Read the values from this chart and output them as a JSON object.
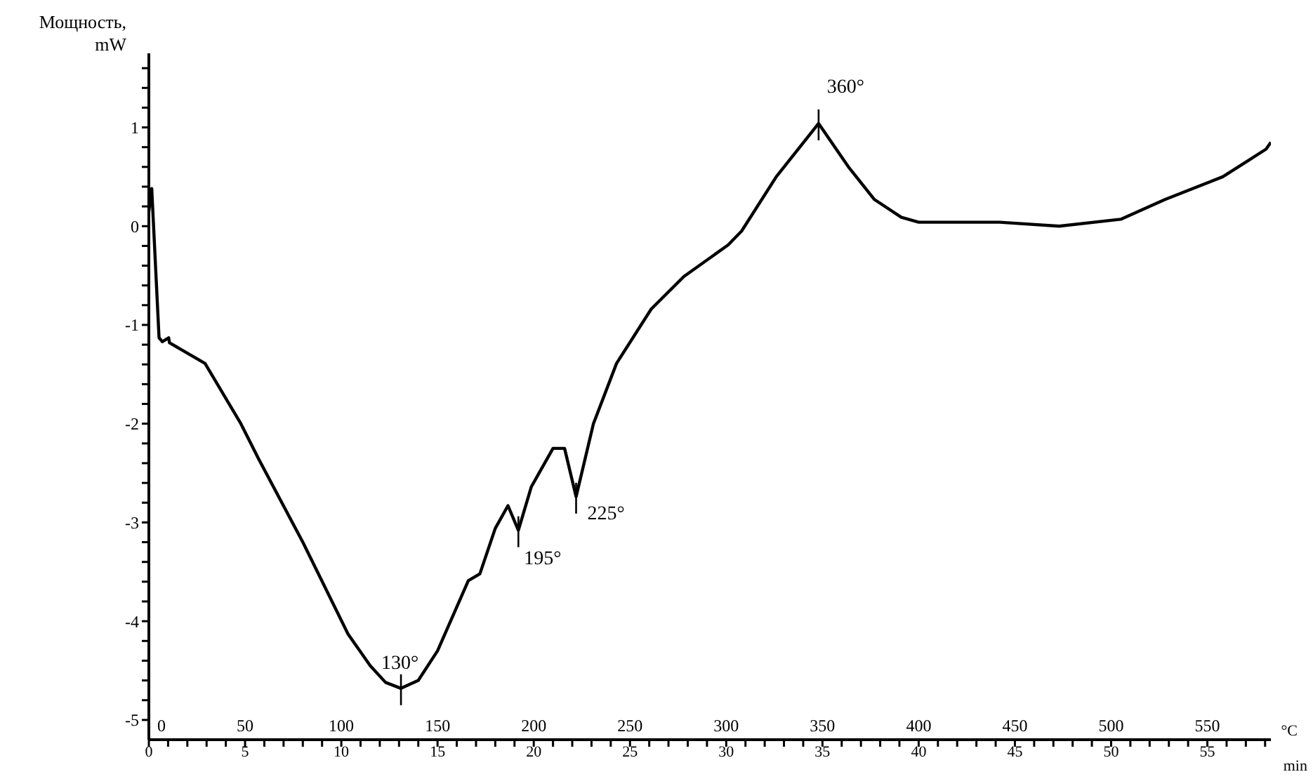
{
  "chart_data": {
    "type": "line",
    "ylabel": "Мощность, mW",
    "xlabel": "min",
    "x2label": "°C",
    "xlim": [
      0,
      58.3
    ],
    "ylim": [
      -5.2,
      1.75
    ],
    "x2lim": [
      0,
      583
    ],
    "xticks": [
      0,
      {
        "value": 1,
        "label": null
      },
      {
        "value": 2,
        "label": null
      },
      {
        "value": 3,
        "label": null
      },
      {
        "value": 4,
        "label": null
      },
      5,
      {
        "value": 6,
        "label": null
      },
      {
        "value": 7,
        "label": null
      },
      {
        "value": 8,
        "label": null
      },
      {
        "value": 9,
        "label": null
      },
      10,
      {
        "value": 11,
        "label": null
      },
      {
        "value": 12,
        "label": null
      },
      {
        "value": 13,
        "label": null
      },
      {
        "value": 14,
        "label": null
      },
      15,
      {
        "value": 16,
        "label": null
      },
      {
        "value": 17,
        "label": null
      },
      {
        "value": 18,
        "label": null
      },
      {
        "value": 19,
        "label": null
      },
      20,
      {
        "value": 21,
        "label": null
      },
      {
        "value": 22,
        "label": null
      },
      {
        "value": 23,
        "label": null
      },
      {
        "value": 24,
        "label": null
      },
      25,
      {
        "value": 26,
        "label": null
      },
      {
        "value": 27,
        "label": null
      },
      {
        "value": 28,
        "label": null
      },
      {
        "value": 29,
        "label": null
      },
      30,
      {
        "value": 31,
        "label": null
      },
      {
        "value": 32,
        "label": null
      },
      {
        "value": 33,
        "label": null
      },
      {
        "value": 34,
        "label": null
      },
      35,
      {
        "value": 36,
        "label": null
      },
      {
        "value": 37,
        "label": null
      },
      {
        "value": 38,
        "label": null
      },
      {
        "value": 39,
        "label": null
      },
      40,
      {
        "value": 41,
        "label": null
      },
      {
        "value": 42,
        "label": null
      },
      {
        "value": 43,
        "label": null
      },
      {
        "value": 44,
        "label": null
      },
      45,
      {
        "value": 46,
        "label": null
      },
      {
        "value": 47,
        "label": null
      },
      {
        "value": 48,
        "label": null
      },
      {
        "value": 49,
        "label": null
      },
      50,
      {
        "value": 51,
        "label": null
      },
      {
        "value": 52,
        "label": null
      },
      {
        "value": 53,
        "label": null
      },
      {
        "value": 54,
        "label": null
      },
      55,
      {
        "value": 56,
        "label": null
      },
      {
        "value": 57,
        "label": null
      },
      {
        "value": 58,
        "label": null
      }
    ],
    "x2ticks": [
      0,
      50,
      100,
      150,
      200,
      250,
      300,
      350,
      400,
      450,
      500,
      550
    ],
    "yticks": [
      {
        "value": -5,
        "label": "-5"
      },
      {
        "value": -4.8,
        "label": null
      },
      {
        "value": -4.6,
        "label": null
      },
      {
        "value": -4.4,
        "label": null
      },
      {
        "value": -4.2,
        "label": null
      },
      {
        "value": -4,
        "label": "-4"
      },
      {
        "value": -3.8,
        "label": null
      },
      {
        "value": -3.6,
        "label": null
      },
      {
        "value": -3.4,
        "label": null
      },
      {
        "value": -3.2,
        "label": null
      },
      {
        "value": -3,
        "label": "-3"
      },
      {
        "value": -2.8,
        "label": null
      },
      {
        "value": -2.6,
        "label": null
      },
      {
        "value": -2.4,
        "label": null
      },
      {
        "value": -2.2,
        "label": null
      },
      {
        "value": -2,
        "label": "-2"
      },
      {
        "value": -1.8,
        "label": null
      },
      {
        "value": -1.6,
        "label": null
      },
      {
        "value": -1.4,
        "label": null
      },
      {
        "value": -1.2,
        "label": null
      },
      {
        "value": -1,
        "label": "-1"
      },
      {
        "value": -0.8,
        "label": null
      },
      {
        "value": -0.6,
        "label": null
      },
      {
        "value": -0.4,
        "label": null
      },
      {
        "value": -0.2,
        "label": null
      },
      0,
      {
        "value": 0.2,
        "label": null
      },
      {
        "value": 0.4,
        "label": null
      },
      {
        "value": 0.6,
        "label": null
      },
      {
        "value": 0.8,
        "label": null
      },
      1,
      {
        "value": 1.2,
        "label": null
      },
      {
        "value": 1.4,
        "label": null
      },
      {
        "value": 1.6,
        "label": null
      }
    ],
    "marker": "none",
    "series": [
      {
        "color": "#000000",
        "x": [
          0,
          0.15,
          0.53,
          0.7,
          1.03,
          1.07,
          2.92,
          4.78,
          5.71,
          8.0,
          10.35,
          11.5,
          12.3,
          13.1,
          14.0,
          15.0,
          16.6,
          17.2,
          18.0,
          18.66,
          19.2,
          19.87,
          21.0,
          21.6,
          22.2,
          23.1,
          24.3,
          26.1,
          27.8,
          30.1,
          30.8,
          32.6,
          34.8,
          36.35,
          37.7,
          39.1,
          40.0,
          44.2,
          47.3,
          50.5,
          52.8,
          55.8,
          58.05,
          58.3
        ],
        "values": [
          0.15,
          0.38,
          -1.13,
          -1.17,
          -1.13,
          -1.18,
          -1.39,
          -2.0,
          -2.36,
          -3.2,
          -4.13,
          -4.45,
          -4.62,
          -4.68,
          -4.6,
          -4.3,
          -3.59,
          -3.52,
          -3.06,
          -2.83,
          -3.08,
          -2.64,
          -2.25,
          -2.25,
          -2.74,
          -2.0,
          -1.39,
          -0.84,
          -0.51,
          -0.19,
          -0.05,
          0.5,
          1.04,
          0.6,
          0.27,
          0.09,
          0.04,
          0.04,
          0.0,
          0.07,
          0.27,
          0.5,
          0.78,
          0.85
        ]
      }
    ],
    "annotations": [
      {
        "text": "130°",
        "x": 13.1,
        "y": -4.68
      },
      {
        "text": "195°",
        "x": 19.2,
        "y": -3.08
      },
      {
        "text": "225°",
        "x": 22.2,
        "y": -2.74
      },
      {
        "text": "360°",
        "x": 34.8,
        "y": 1.04
      }
    ]
  }
}
